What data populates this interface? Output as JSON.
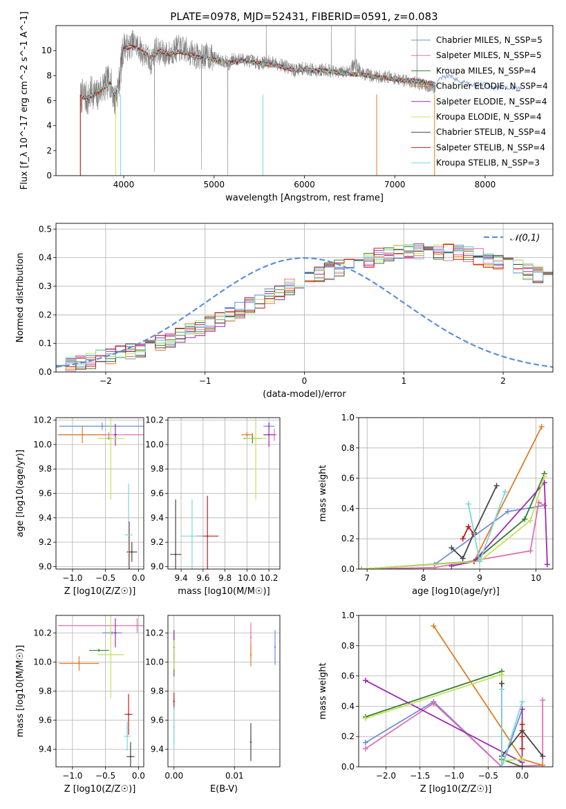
{
  "figure": {
    "title": "PLATE=0978, MJD=52431, FIBERID=0591, z=0.083"
  },
  "model_colors": {
    "Chabrier MILES": "#6a8fd8",
    "Salpeter MILES": "#e26fb0",
    "Kroupa MILES": "#2f7d2f",
    "Chabrier ELODIE": "#e07b20",
    "Salpeter ELODIE": "#9a28b0",
    "Kroupa ELODIE": "#c7e05a",
    "Chabrier STELIB": "#444444",
    "Salpeter STELIB": "#c41818",
    "Kroupa STELIB": "#7ad8dc"
  },
  "chart_data": [
    {
      "id": "spectrum",
      "type": "line",
      "xlabel": "wavelength [Angstrom, rest frame]",
      "ylabel": "Flux [f_λ 10^-17 erg cm^-2 s^-1 A^-1]",
      "xlim": [
        3250,
        8750
      ],
      "ylim": [
        0,
        12
      ],
      "xticks": [
        4000,
        5000,
        6000,
        7000,
        8000
      ],
      "yticks": [
        0,
        2,
        4,
        6,
        8,
        10
      ],
      "grid": false,
      "legend_position": "right",
      "legend": [
        {
          "label": "Chabrier MILES, N_SSP=5",
          "model": "Chabrier MILES"
        },
        {
          "label": "Salpeter MILES, N_SSP=5",
          "model": "Salpeter MILES"
        },
        {
          "label": "Kroupa MILES, N_SSP=4",
          "model": "Kroupa MILES"
        },
        {
          "label": "Chabrier ELODIE, N_SSP=4",
          "model": "Chabrier ELODIE"
        },
        {
          "label": "Salpeter ELODIE, N_SSP=4",
          "model": "Salpeter ELODIE"
        },
        {
          "label": "Kroupa ELODIE, N_SSP=4",
          "model": "Kroupa ELODIE"
        },
        {
          "label": "Chabrier STELIB, N_SSP=4",
          "model": "Chabrier STELIB"
        },
        {
          "label": "Salpeter STELIB, N_SSP=4",
          "model": "Salpeter STELIB"
        },
        {
          "label": "Kroupa STELIB, N_SSP=3",
          "model": "Kroupa STELIB"
        }
      ],
      "data_series": {
        "name": "data",
        "color": "#808080",
        "x": [
          3520,
          3560,
          3600,
          3650,
          3700,
          3750,
          3800,
          3850,
          3900,
          3950,
          4000,
          4050,
          4100,
          4150,
          4200,
          4250,
          4300,
          4350,
          4400,
          4500,
          4600,
          4700,
          4800,
          4860,
          4900,
          5000,
          5100,
          5175,
          5200,
          5300,
          5400,
          5500,
          5600,
          5700,
          5800,
          5893,
          5950,
          6050,
          6150,
          6250,
          6350,
          6450,
          6563,
          6650,
          6750,
          6850,
          6950,
          7050,
          7150,
          7250,
          7350,
          7450
        ],
        "y": [
          6.2,
          6.5,
          6.0,
          6.8,
          6.3,
          7.0,
          7.3,
          7.6,
          6.0,
          7.5,
          10.5,
          10.2,
          10.6,
          10.4,
          9.9,
          9.6,
          9.0,
          10.2,
          9.8,
          9.7,
          10.2,
          10.0,
          9.6,
          9.5,
          9.6,
          9.4,
          9.2,
          8.9,
          9.3,
          9.3,
          9.2,
          9.0,
          9.1,
          9.0,
          8.7,
          8.4,
          8.6,
          8.5,
          8.4,
          8.5,
          8.2,
          8.3,
          8.9,
          8.1,
          8.0,
          7.9,
          7.9,
          7.7,
          7.6,
          7.4,
          7.2,
          7.0
        ]
      },
      "model_curve": {
        "x": [
          3520,
          3600,
          3700,
          3800,
          3850,
          3900,
          3950,
          4000,
          4100,
          4200,
          4300,
          4400,
          4500,
          4600,
          4700,
          4800,
          4900,
          5000,
          5100,
          5175,
          5300,
          5400,
          5500,
          5600,
          5700,
          5800,
          5893,
          6000,
          6100,
          6200,
          6300,
          6400,
          6563,
          6700,
          6800,
          6900,
          7000,
          7100,
          7200,
          7300,
          7400,
          7450,
          7500,
          7600,
          7700,
          7800,
          7900,
          8000,
          8100,
          8200,
          8300,
          8400
        ],
        "y": [
          6.3,
          6.2,
          6.6,
          7.1,
          7.4,
          6.4,
          7.6,
          10.2,
          10.3,
          10.0,
          9.4,
          10.0,
          9.7,
          9.9,
          9.8,
          9.5,
          9.5,
          9.3,
          9.2,
          9.0,
          9.2,
          9.1,
          9.0,
          8.9,
          8.8,
          8.6,
          8.4,
          8.5,
          8.4,
          8.4,
          8.3,
          8.2,
          8.1,
          8.0,
          7.9,
          7.8,
          7.7,
          7.6,
          7.6,
          7.5,
          7.4,
          7.3,
          7.8,
          8.0,
          7.6,
          7.4,
          7.2,
          7.3,
          7.0,
          7.1,
          7.0,
          7.0
        ]
      }
    },
    {
      "id": "residual-histogram",
      "type": "histogram",
      "xlabel": "(data-model)/error",
      "ylabel": "Normed distribution",
      "xlim": [
        -2.5,
        2.5
      ],
      "ylim": [
        0,
        0.52
      ],
      "xticks": [
        -2,
        -1,
        0,
        1,
        2
      ],
      "yticks": [
        0.0,
        0.1,
        0.2,
        0.3,
        0.4,
        0.5
      ],
      "grid": true,
      "legend_position": "top-right",
      "legend": [
        {
          "label": "𝒩(0,1)",
          "color": "#5b8fd9",
          "style": "dashed"
        }
      ],
      "bin_start": -2.5,
      "bin_width": 0.1,
      "histogram_base": [
        0.03,
        0.032,
        0.035,
        0.04,
        0.048,
        0.055,
        0.063,
        0.072,
        0.082,
        0.092,
        0.103,
        0.115,
        0.128,
        0.141,
        0.155,
        0.17,
        0.185,
        0.2,
        0.216,
        0.232,
        0.248,
        0.264,
        0.28,
        0.296,
        0.311,
        0.326,
        0.34,
        0.353,
        0.365,
        0.376,
        0.386,
        0.395,
        0.403,
        0.41,
        0.415,
        0.419,
        0.421,
        0.422,
        0.421,
        0.419,
        0.415,
        0.41,
        0.403,
        0.395,
        0.386,
        0.376,
        0.365,
        0.353,
        0.34,
        0.326,
        0.311,
        0.296,
        0.28,
        0.264,
        0.248,
        0.232,
        0.216,
        0.2,
        0.185,
        0.17,
        0.155,
        0.141,
        0.128,
        0.115,
        0.103,
        0.092,
        0.082,
        0.072,
        0.063,
        0.055,
        0.048,
        0.04,
        0.035,
        0.032,
        0.03,
        0.028,
        0.026,
        0.025,
        0.024,
        0.023
      ],
      "normal_pdf": {
        "mean": 0,
        "sigma": 1
      }
    },
    {
      "id": "age-vs-Z",
      "type": "scatter",
      "xlabel": "Z [log10(Z/Z☉)]",
      "ylabel": "age  [log10(age/yr)]",
      "xlim": [
        -1.25,
        0.08
      ],
      "ylim": [
        8.98,
        10.22
      ],
      "xticks": [
        -1.0,
        -0.5,
        0.0
      ],
      "yticks": [
        9.0,
        9.2,
        9.4,
        9.6,
        9.8,
        10.0,
        10.2
      ],
      "grid": true,
      "points": [
        {
          "model": "Chabrier MILES",
          "x": -0.55,
          "y": 10.15,
          "xerr": 0.65,
          "yerr": 0.03
        },
        {
          "model": "Salpeter MILES",
          "x": -0.45,
          "y": 10.08,
          "xerr": 0.78,
          "yerr": 0.02
        },
        {
          "model": "Kroupa MILES",
          "x": -0.45,
          "y": 10.05,
          "xerr": 0.05,
          "yerr": 0.01
        },
        {
          "model": "Chabrier ELODIE",
          "x": -0.85,
          "y": 10.08,
          "xerr": 0.35,
          "yerr": 0.07
        },
        {
          "model": "Salpeter ELODIE",
          "x": -0.35,
          "y": 10.08,
          "xerr": 0.02,
          "yerr": 0.09
        },
        {
          "model": "Kroupa ELODIE",
          "x": -0.42,
          "y": 10.05,
          "xerr": 0.2,
          "yerr": 0.5
        },
        {
          "model": "Chabrier STELIB",
          "x": -0.1,
          "y": 9.12,
          "xerr": 0.08,
          "yerr": 0.08
        },
        {
          "model": "Salpeter STELIB",
          "x": -0.14,
          "y": 9.12,
          "xerr": 0.02,
          "yerr": 0.25
        },
        {
          "model": "Kroupa STELIB",
          "x": -0.15,
          "y": 9.26,
          "xerr": 0.06,
          "yerr": 0.42
        }
      ]
    },
    {
      "id": "age-vs-mass",
      "type": "scatter",
      "xlabel": "mass [log10(M/M☉)]",
      "ylabel": "",
      "xlim": [
        9.28,
        10.3
      ],
      "ylim": [
        8.98,
        10.22
      ],
      "xticks": [
        9.4,
        9.6,
        9.8,
        10.0,
        10.2
      ],
      "yticks": [
        9.0,
        9.2,
        9.4,
        9.6,
        9.8,
        10.0,
        10.2
      ],
      "grid": true,
      "points": [
        {
          "model": "Chabrier MILES",
          "x": 10.2,
          "y": 10.15,
          "xerr": 0.05,
          "yerr": 0.03
        },
        {
          "model": "Salpeter MILES",
          "x": 10.25,
          "y": 10.08,
          "xerr": 0.02,
          "yerr": 0.05
        },
        {
          "model": "Kroupa MILES",
          "x": 10.05,
          "y": 10.05,
          "xerr": 0.08,
          "yerr": 0.04
        },
        {
          "model": "Chabrier ELODIE",
          "x": 10.0,
          "y": 10.08,
          "xerr": 0.05,
          "yerr": 0.02
        },
        {
          "model": "Salpeter ELODIE",
          "x": 10.2,
          "y": 10.08,
          "xerr": 0.05,
          "yerr": 0.1
        },
        {
          "model": "Kroupa ELODIE",
          "x": 10.08,
          "y": 10.05,
          "xerr": 0.1,
          "yerr": 0.5
        },
        {
          "model": "Chabrier STELIB",
          "x": 9.35,
          "y": 9.1,
          "xerr": 0.05,
          "yerr": 0.45
        },
        {
          "model": "Salpeter STELIB",
          "x": 9.64,
          "y": 9.25,
          "xerr": 0.1,
          "yerr": 0.33
        },
        {
          "model": "Kroupa STELIB",
          "x": 9.5,
          "y": 9.25,
          "xerr": 0.1,
          "yerr": 0.3
        }
      ]
    },
    {
      "id": "mass-weight-vs-age",
      "type": "line",
      "xlabel": "age  [log10(age/yr)]",
      "ylabel": "mass weight",
      "xlim": [
        6.85,
        10.3
      ],
      "ylim": [
        0,
        1
      ],
      "xticks": [
        7,
        8,
        9,
        10
      ],
      "yticks": [
        0.0,
        0.2,
        0.4,
        0.6,
        0.8,
        1.0
      ],
      "grid": true,
      "series": [
        {
          "model": "Chabrier MILES",
          "x": [
            6.9,
            8.2,
            9.5,
            10.15
          ],
          "y": [
            0.0,
            0.03,
            0.38,
            0.42
          ]
        },
        {
          "model": "Salpeter MILES",
          "x": [
            6.9,
            8.2,
            9.9,
            10.05,
            10.15
          ],
          "y": [
            0.0,
            0.01,
            0.12,
            0.44,
            0.42
          ]
        },
        {
          "model": "Kroupa MILES",
          "x": [
            6.9,
            8.9,
            9.8,
            10.15
          ],
          "y": [
            0.0,
            0.05,
            0.33,
            0.63
          ]
        },
        {
          "model": "Chabrier ELODIE",
          "x": [
            8.9,
            10.1
          ],
          "y": [
            0.05,
            0.94
          ]
        },
        {
          "model": "Salpeter ELODIE",
          "x": [
            8.5,
            8.9,
            10.15,
            10.2
          ],
          "y": [
            0.02,
            0.05,
            0.57,
            0.03
          ]
        },
        {
          "model": "Kroupa ELODIE",
          "x": [
            6.9,
            9.0,
            9.9,
            10.15
          ],
          "y": [
            0.0,
            0.05,
            0.32,
            0.61
          ]
        },
        {
          "model": "Chabrier STELIB",
          "x": [
            8.5,
            8.7,
            8.9,
            9.3
          ],
          "y": [
            0.14,
            0.07,
            0.24,
            0.55
          ]
        },
        {
          "model": "Salpeter STELIB",
          "x": [
            8.7,
            8.8,
            8.9
          ],
          "y": [
            0.2,
            0.28,
            0.23
          ]
        },
        {
          "model": "Kroupa STELIB",
          "x": [
            8.8,
            9.0,
            9.45
          ],
          "y": [
            0.43,
            0.05,
            0.51
          ]
        }
      ]
    },
    {
      "id": "mass-vs-Z",
      "type": "scatter",
      "xlabel": "Z [log10(Z/Z☉)]",
      "ylabel": "mass [log10(M/M☉)]",
      "xlim": [
        -1.25,
        0.08
      ],
      "ylim": [
        9.28,
        10.32
      ],
      "xticks": [
        -1.0,
        -0.5,
        0.0
      ],
      "yticks": [
        9.4,
        9.6,
        9.8,
        10.0,
        10.2
      ],
      "grid": true,
      "points": [
        {
          "model": "Chabrier MILES",
          "x": -0.4,
          "y": 10.2,
          "xerr": 0.15,
          "yerr": 0.01
        },
        {
          "model": "Salpeter MILES",
          "x": -0.02,
          "y": 10.25,
          "xerr": 1.2,
          "yerr": 0.05
        },
        {
          "model": "Kroupa MILES",
          "x": -0.6,
          "y": 10.08,
          "xerr": 0.15,
          "yerr": 0.01
        },
        {
          "model": "Chabrier ELODIE",
          "x": -0.9,
          "y": 9.99,
          "xerr": 0.3,
          "yerr": 0.05
        },
        {
          "model": "Salpeter ELODIE",
          "x": -0.35,
          "y": 10.2,
          "xerr": 0.02,
          "yerr": 0.1
        },
        {
          "model": "Kroupa ELODIE",
          "x": -0.42,
          "y": 10.05,
          "xerr": 0.2,
          "yerr": 0.3
        },
        {
          "model": "Chabrier STELIB",
          "x": -0.12,
          "y": 9.35,
          "xerr": 0.06,
          "yerr": 0.1
        },
        {
          "model": "Salpeter STELIB",
          "x": -0.15,
          "y": 9.64,
          "xerr": 0.06,
          "yerr": 0.14
        },
        {
          "model": "Kroupa STELIB",
          "x": -0.17,
          "y": 9.49,
          "xerr": 0.05,
          "yerr": 0.1
        }
      ]
    },
    {
      "id": "mass-vs-EBV",
      "type": "scatter",
      "xlabel": "E(B-V)",
      "ylabel": "",
      "xlim": [
        -0.001,
        0.0175
      ],
      "ylim": [
        9.28,
        10.32
      ],
      "xticks": [
        0.0,
        0.01
      ],
      "xtick_labels": [
        "0.00",
        "0.01"
      ],
      "yticks": [
        9.4,
        9.6,
        9.8,
        10.0,
        10.2
      ],
      "grid": true,
      "points": [
        {
          "model": "Chabrier MILES",
          "x": 0.0167,
          "y": 10.1,
          "xerr": 0.0,
          "yerr": 0.12
        },
        {
          "model": "Salpeter MILES",
          "x": 0.0127,
          "y": 10.17,
          "xerr": 0.0,
          "yerr": 0.1
        },
        {
          "model": "Kroupa MILES",
          "x": 0.0,
          "y": 10.05,
          "xerr": 0.0,
          "yerr": 0.15
        },
        {
          "model": "Chabrier ELODIE",
          "x": 0.0127,
          "y": 10.05,
          "xerr": 0.0,
          "yerr": 0.08
        },
        {
          "model": "Salpeter ELODIE",
          "x": 0.0,
          "y": 10.1,
          "xerr": 0.0,
          "yerr": 0.12
        },
        {
          "model": "Kroupa ELODIE",
          "x": 0.0,
          "y": 10.05,
          "xerr": 0.0,
          "yerr": 0.1
        },
        {
          "model": "Chabrier STELIB",
          "x": 0.0127,
          "y": 9.45,
          "xerr": 0.0,
          "yerr": 0.13
        },
        {
          "model": "Salpeter STELIB",
          "x": 0.0,
          "y": 9.73,
          "xerr": 0.0,
          "yerr": 0.06
        },
        {
          "model": "Kroupa STELIB",
          "x": 0.0,
          "y": 9.55,
          "xerr": 0.0,
          "yerr": 0.14
        }
      ]
    },
    {
      "id": "mass-weight-vs-Z",
      "type": "line",
      "xlabel": "Z [log10(Z/Z☉)]",
      "ylabel": "mass weight",
      "xlim": [
        -2.4,
        0.45
      ],
      "ylim": [
        0,
        1
      ],
      "xticks": [
        -2.0,
        -1.5,
        -1.0,
        -0.5,
        0.0
      ],
      "yticks": [
        0.0,
        0.2,
        0.4,
        0.6,
        0.8,
        1.0
      ],
      "grid": true,
      "series": [
        {
          "model": "Chabrier MILES",
          "x": [
            -2.3,
            -1.3,
            -0.3,
            0.0
          ],
          "y": [
            0.16,
            0.43,
            0.0,
            0.38
          ]
        },
        {
          "model": "Salpeter MILES",
          "x": [
            -2.3,
            -1.3,
            -0.3,
            0.3,
            0.3
          ],
          "y": [
            0.12,
            0.42,
            0.0,
            0.01,
            0.44
          ]
        },
        {
          "model": "Kroupa MILES",
          "x": [
            -2.3,
            -0.3,
            -0.3,
            0.0
          ],
          "y": [
            0.33,
            0.63,
            0.05,
            0.0
          ]
        },
        {
          "model": "Chabrier ELODIE",
          "x": [
            -1.3,
            0.0,
            0.3
          ],
          "y": [
            0.93,
            0.05,
            0.01
          ]
        },
        {
          "model": "Salpeter ELODIE",
          "x": [
            -2.3,
            0.0,
            0.0
          ],
          "y": [
            0.57,
            0.03,
            0.38
          ]
        },
        {
          "model": "Kroupa ELODIE",
          "x": [
            -2.3,
            -0.3,
            -0.3,
            0.0
          ],
          "y": [
            0.32,
            0.61,
            0.04,
            0.05
          ]
        },
        {
          "model": "Chabrier STELIB",
          "x": [
            -0.3,
            -0.3,
            0.0,
            0.3
          ],
          "y": [
            0.55,
            0.07,
            0.24,
            0.07
          ]
        },
        {
          "model": "Salpeter STELIB",
          "x": [
            0.0,
            0.0,
            0.0
          ],
          "y": [
            0.2,
            0.28,
            0.12
          ]
        },
        {
          "model": "Kroupa STELIB",
          "x": [
            -0.3,
            -0.3,
            0.0
          ],
          "y": [
            0.51,
            0.0,
            0.43
          ]
        }
      ]
    }
  ]
}
